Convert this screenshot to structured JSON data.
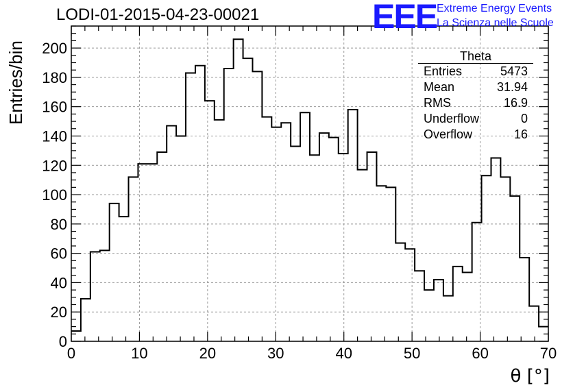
{
  "header": {
    "title": "LODI-01-2015-04-23-00021",
    "logo_text": "EEE",
    "logo_line1": "Extreme Energy Events",
    "logo_line2": "La Scienza nelle Scuole"
  },
  "stats": {
    "title": "Theta",
    "rows": [
      {
        "label": "Entries",
        "value": "5473"
      },
      {
        "label": "Mean",
        "value": "31.94"
      },
      {
        "label": "RMS",
        "value": "16.9"
      },
      {
        "label": "Underflow",
        "value": "0"
      },
      {
        "label": "Overflow",
        "value": "16"
      }
    ]
  },
  "chart_data": {
    "type": "bar",
    "title": "LODI-01-2015-04-23-00021",
    "xlabel": "θ [°]",
    "ylabel": "Entries/bin",
    "xlim": [
      0,
      70
    ],
    "ylim": [
      0,
      215
    ],
    "grid": true,
    "bin_width": 1.4,
    "x_ticks": [
      0,
      10,
      20,
      30,
      40,
      50,
      60,
      70
    ],
    "y_ticks": [
      0,
      20,
      40,
      60,
      80,
      100,
      120,
      140,
      160,
      180,
      200
    ],
    "values": [
      7,
      29,
      61,
      62,
      94,
      85,
      112,
      121,
      121,
      129,
      147,
      140,
      183,
      188,
      164,
      151,
      186,
      206,
      193,
      184,
      153,
      146,
      149,
      133,
      156,
      127,
      142,
      139,
      128,
      158,
      117,
      129,
      106,
      105,
      67,
      63,
      48,
      35,
      42,
      31,
      51,
      47,
      81,
      113,
      125,
      112,
      99,
      57,
      24,
      10
    ]
  }
}
